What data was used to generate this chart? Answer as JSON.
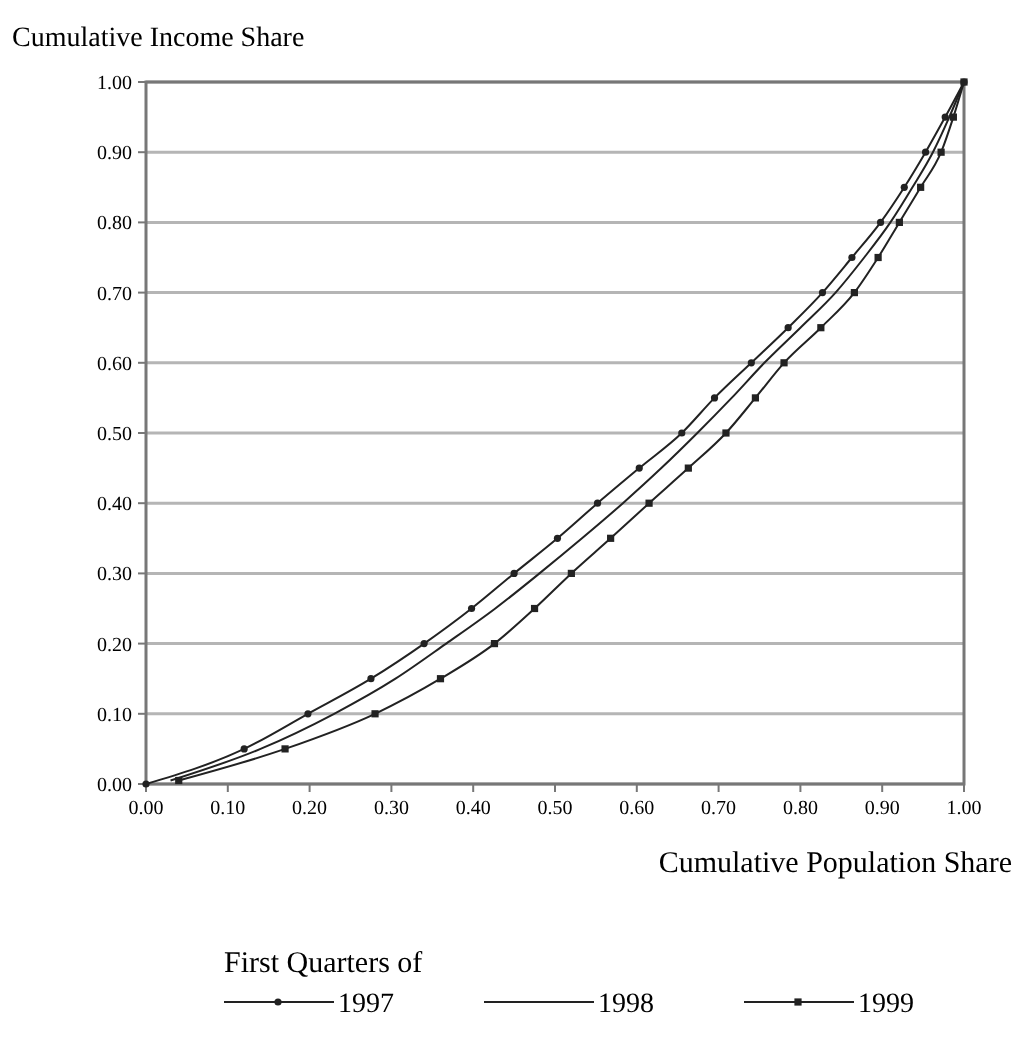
{
  "chart_data": {
    "type": "line",
    "ylabel": "Cumulative Income Share",
    "xlabel": "Cumulative Population Share",
    "legend_title": "First Quarters of",
    "legend": "bottom",
    "grid": "y",
    "xlim": [
      0,
      1
    ],
    "ylim": [
      0,
      1
    ],
    "xticks": [
      {
        "value": 0,
        "label": "0.00"
      },
      {
        "value": 0.1,
        "label": "0.10"
      },
      {
        "value": 0.2,
        "label": "0.20"
      },
      {
        "value": 0.3,
        "label": "0.30"
      },
      {
        "value": 0.4,
        "label": "0.40"
      },
      {
        "value": 0.5,
        "label": "0.50"
      },
      {
        "value": 0.6,
        "label": "0.60"
      },
      {
        "value": 0.7,
        "label": "0.70"
      },
      {
        "value": 0.8,
        "label": "0.80"
      },
      {
        "value": 0.9,
        "label": "0.90"
      },
      {
        "value": 1,
        "label": "1.00"
      }
    ],
    "yticks": [
      {
        "value": 0,
        "label": "0.00"
      },
      {
        "value": 0.1,
        "label": "0.10"
      },
      {
        "value": 0.2,
        "label": "0.20"
      },
      {
        "value": 0.3,
        "label": "0.30"
      },
      {
        "value": 0.4,
        "label": "0.40"
      },
      {
        "value": 0.5,
        "label": "0.50"
      },
      {
        "value": 0.6,
        "label": "0.60"
      },
      {
        "value": 0.7,
        "label": "0.70"
      },
      {
        "value": 0.8,
        "label": "0.80"
      },
      {
        "value": 0.9,
        "label": "0.90"
      },
      {
        "value": 1,
        "label": "1.00"
      }
    ],
    "series": [
      {
        "name": "1997",
        "color": "#222222",
        "marker": "circle",
        "x": [
          0,
          0.12,
          0.198,
          0.275,
          0.34,
          0.398,
          0.45,
          0.503,
          0.552,
          0.603,
          0.655,
          0.695,
          0.74,
          0.785,
          0.827,
          0.863,
          0.898,
          0.927,
          0.953,
          0.977,
          1
        ],
        "values": [
          0,
          0.05,
          0.1,
          0.15,
          0.2,
          0.25,
          0.3,
          0.35,
          0.4,
          0.45,
          0.5,
          0.55,
          0.6,
          0.65,
          0.7,
          0.75,
          0.8,
          0.85,
          0.9,
          0.95,
          1
        ]
      },
      {
        "name": "1998",
        "color": "#222222",
        "marker": "none",
        "x": [
          0.03,
          0.14,
          0.23,
          0.305,
          0.367,
          0.427,
          0.481,
          0.533,
          0.583,
          0.63,
          0.674,
          0.716,
          0.756,
          0.8,
          0.843,
          0.878,
          0.91,
          0.937,
          0.962,
          0.982,
          1
        ],
        "values": [
          0.005,
          0.05,
          0.1,
          0.15,
          0.2,
          0.25,
          0.3,
          0.35,
          0.4,
          0.45,
          0.5,
          0.55,
          0.6,
          0.65,
          0.7,
          0.75,
          0.8,
          0.85,
          0.9,
          0.95,
          1
        ]
      },
      {
        "name": "1999",
        "color": "#222222",
        "marker": "square",
        "x": [
          0.04,
          0.17,
          0.28,
          0.36,
          0.426,
          0.475,
          0.52,
          0.568,
          0.615,
          0.663,
          0.709,
          0.745,
          0.78,
          0.825,
          0.866,
          0.895,
          0.921,
          0.947,
          0.972,
          0.987,
          1
        ],
        "values": [
          0.005,
          0.05,
          0.1,
          0.15,
          0.2,
          0.25,
          0.3,
          0.35,
          0.4,
          0.45,
          0.5,
          0.55,
          0.6,
          0.65,
          0.7,
          0.75,
          0.8,
          0.85,
          0.9,
          0.95,
          1
        ]
      }
    ]
  }
}
